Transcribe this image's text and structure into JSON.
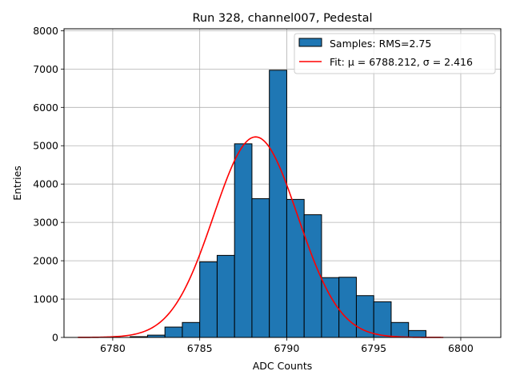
{
  "chart_data": {
    "type": "bar",
    "title": "Run 328, channel007, Pedestal",
    "xlabel": "ADC Counts",
    "ylabel": "Entries",
    "xlim": [
      6777.2,
      6802.3
    ],
    "ylim": [
      0,
      8050
    ],
    "xticks": [
      6780,
      6785,
      6790,
      6795,
      6800
    ],
    "yticks": [
      0,
      1000,
      2000,
      3000,
      4000,
      5000,
      6000,
      7000,
      8000
    ],
    "grid": true,
    "legend_position": "top-right",
    "bins": {
      "left_edges": [
        6781,
        6782,
        6783,
        6784,
        6785,
        6786,
        6787,
        6788,
        6789,
        6790,
        6791,
        6792,
        6793,
        6794,
        6795,
        6796,
        6797
      ],
      "width": 1,
      "values": [
        20,
        60,
        270,
        390,
        1970,
        2140,
        5050,
        3620,
        6970,
        3600,
        3200,
        1560,
        1570,
        1090,
        930,
        390,
        180
      ]
    },
    "series": [
      {
        "name": "Samples: RMS=2.75",
        "kind": "histogram",
        "color": "#1f77b4"
      },
      {
        "name": "Fit: μ = 6788.212, σ = 2.416",
        "kind": "line",
        "color": "#ff0000",
        "mu": 6788.212,
        "sigma": 2.416,
        "amplitude": 5230,
        "x_range": [
          6778,
          6799
        ]
      }
    ]
  }
}
